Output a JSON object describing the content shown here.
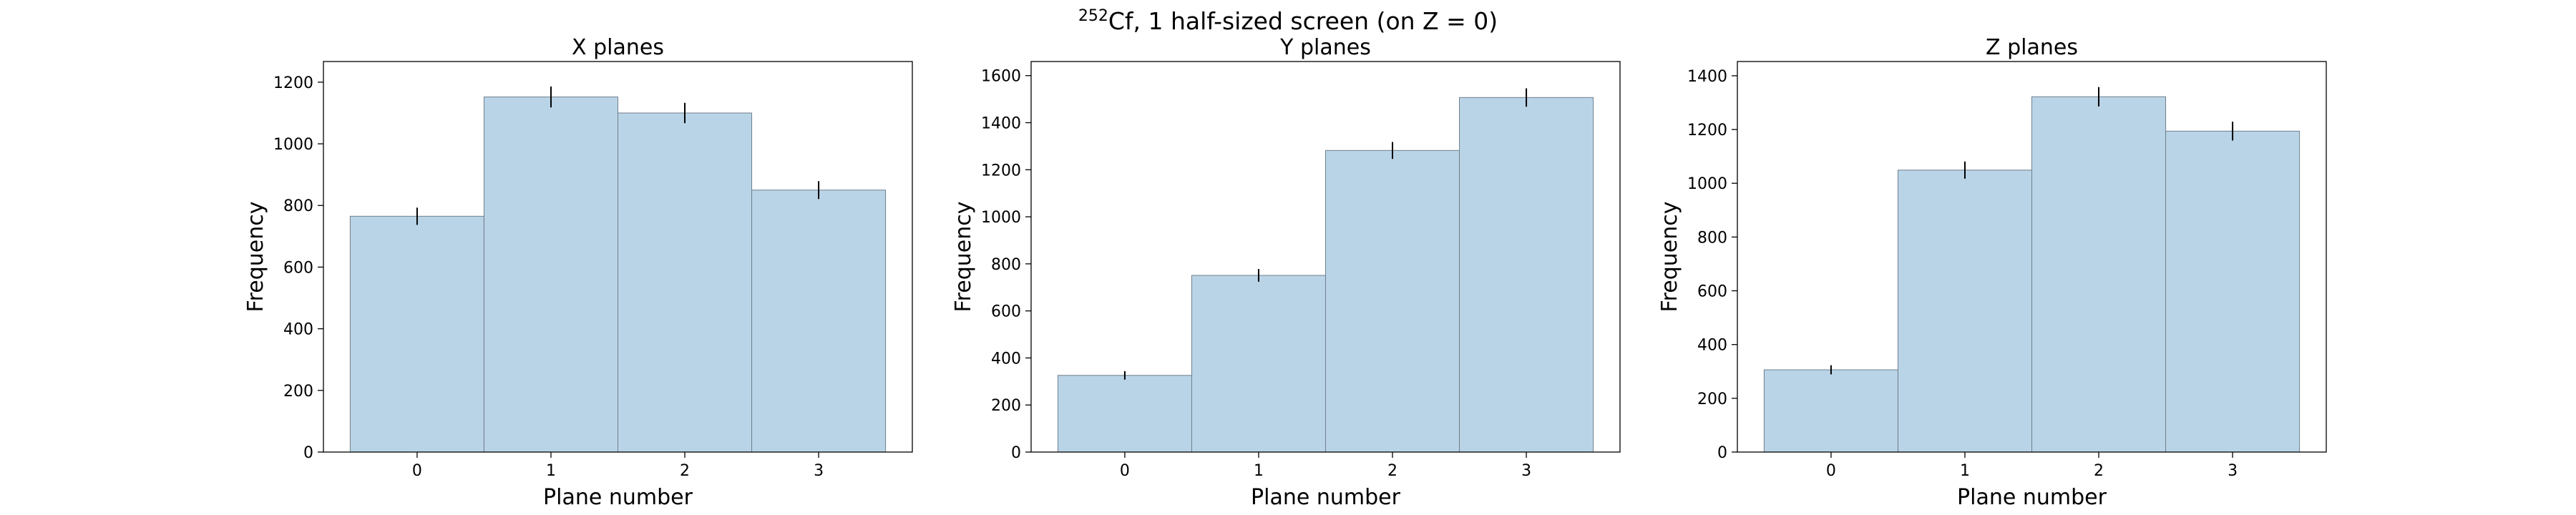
{
  "figure": {
    "suptitle_sup": "252",
    "suptitle_main": "Cf, 1 half-sized screen (on Z = 0)"
  },
  "chart_data": [
    {
      "type": "bar",
      "title": "X planes",
      "xlabel": "Plane number",
      "ylabel": "Frequency",
      "categories": [
        "0",
        "1",
        "2",
        "3"
      ],
      "values": [
        765,
        1152,
        1100,
        850
      ],
      "errors": [
        28,
        34,
        33,
        29
      ],
      "ylim": [
        0,
        1267
      ],
      "yticks": [
        0,
        200,
        400,
        600,
        800,
        1000,
        1200
      ],
      "bar_color": "#bad4e7",
      "grid": false
    },
    {
      "type": "bar",
      "title": "Y planes",
      "xlabel": "Plane number",
      "ylabel": "Frequency",
      "categories": [
        "0",
        "1",
        "2",
        "3"
      ],
      "values": [
        326,
        751,
        1282,
        1507
      ],
      "errors": [
        18,
        27,
        36,
        39
      ],
      "ylim": [
        0,
        1660
      ],
      "yticks": [
        0,
        200,
        400,
        600,
        800,
        1000,
        1200,
        1400,
        1600
      ],
      "bar_color": "#bad4e7",
      "grid": false
    },
    {
      "type": "bar",
      "title": "Z planes",
      "xlabel": "Plane number",
      "ylabel": "Frequency",
      "categories": [
        "0",
        "1",
        "2",
        "3"
      ],
      "values": [
        306,
        1049,
        1322,
        1194
      ],
      "errors": [
        17,
        32,
        36,
        35
      ],
      "ylim": [
        0,
        1453
      ],
      "yticks": [
        0,
        200,
        400,
        600,
        800,
        1000,
        1200,
        1400
      ],
      "bar_color": "#bad4e7",
      "grid": false
    }
  ]
}
